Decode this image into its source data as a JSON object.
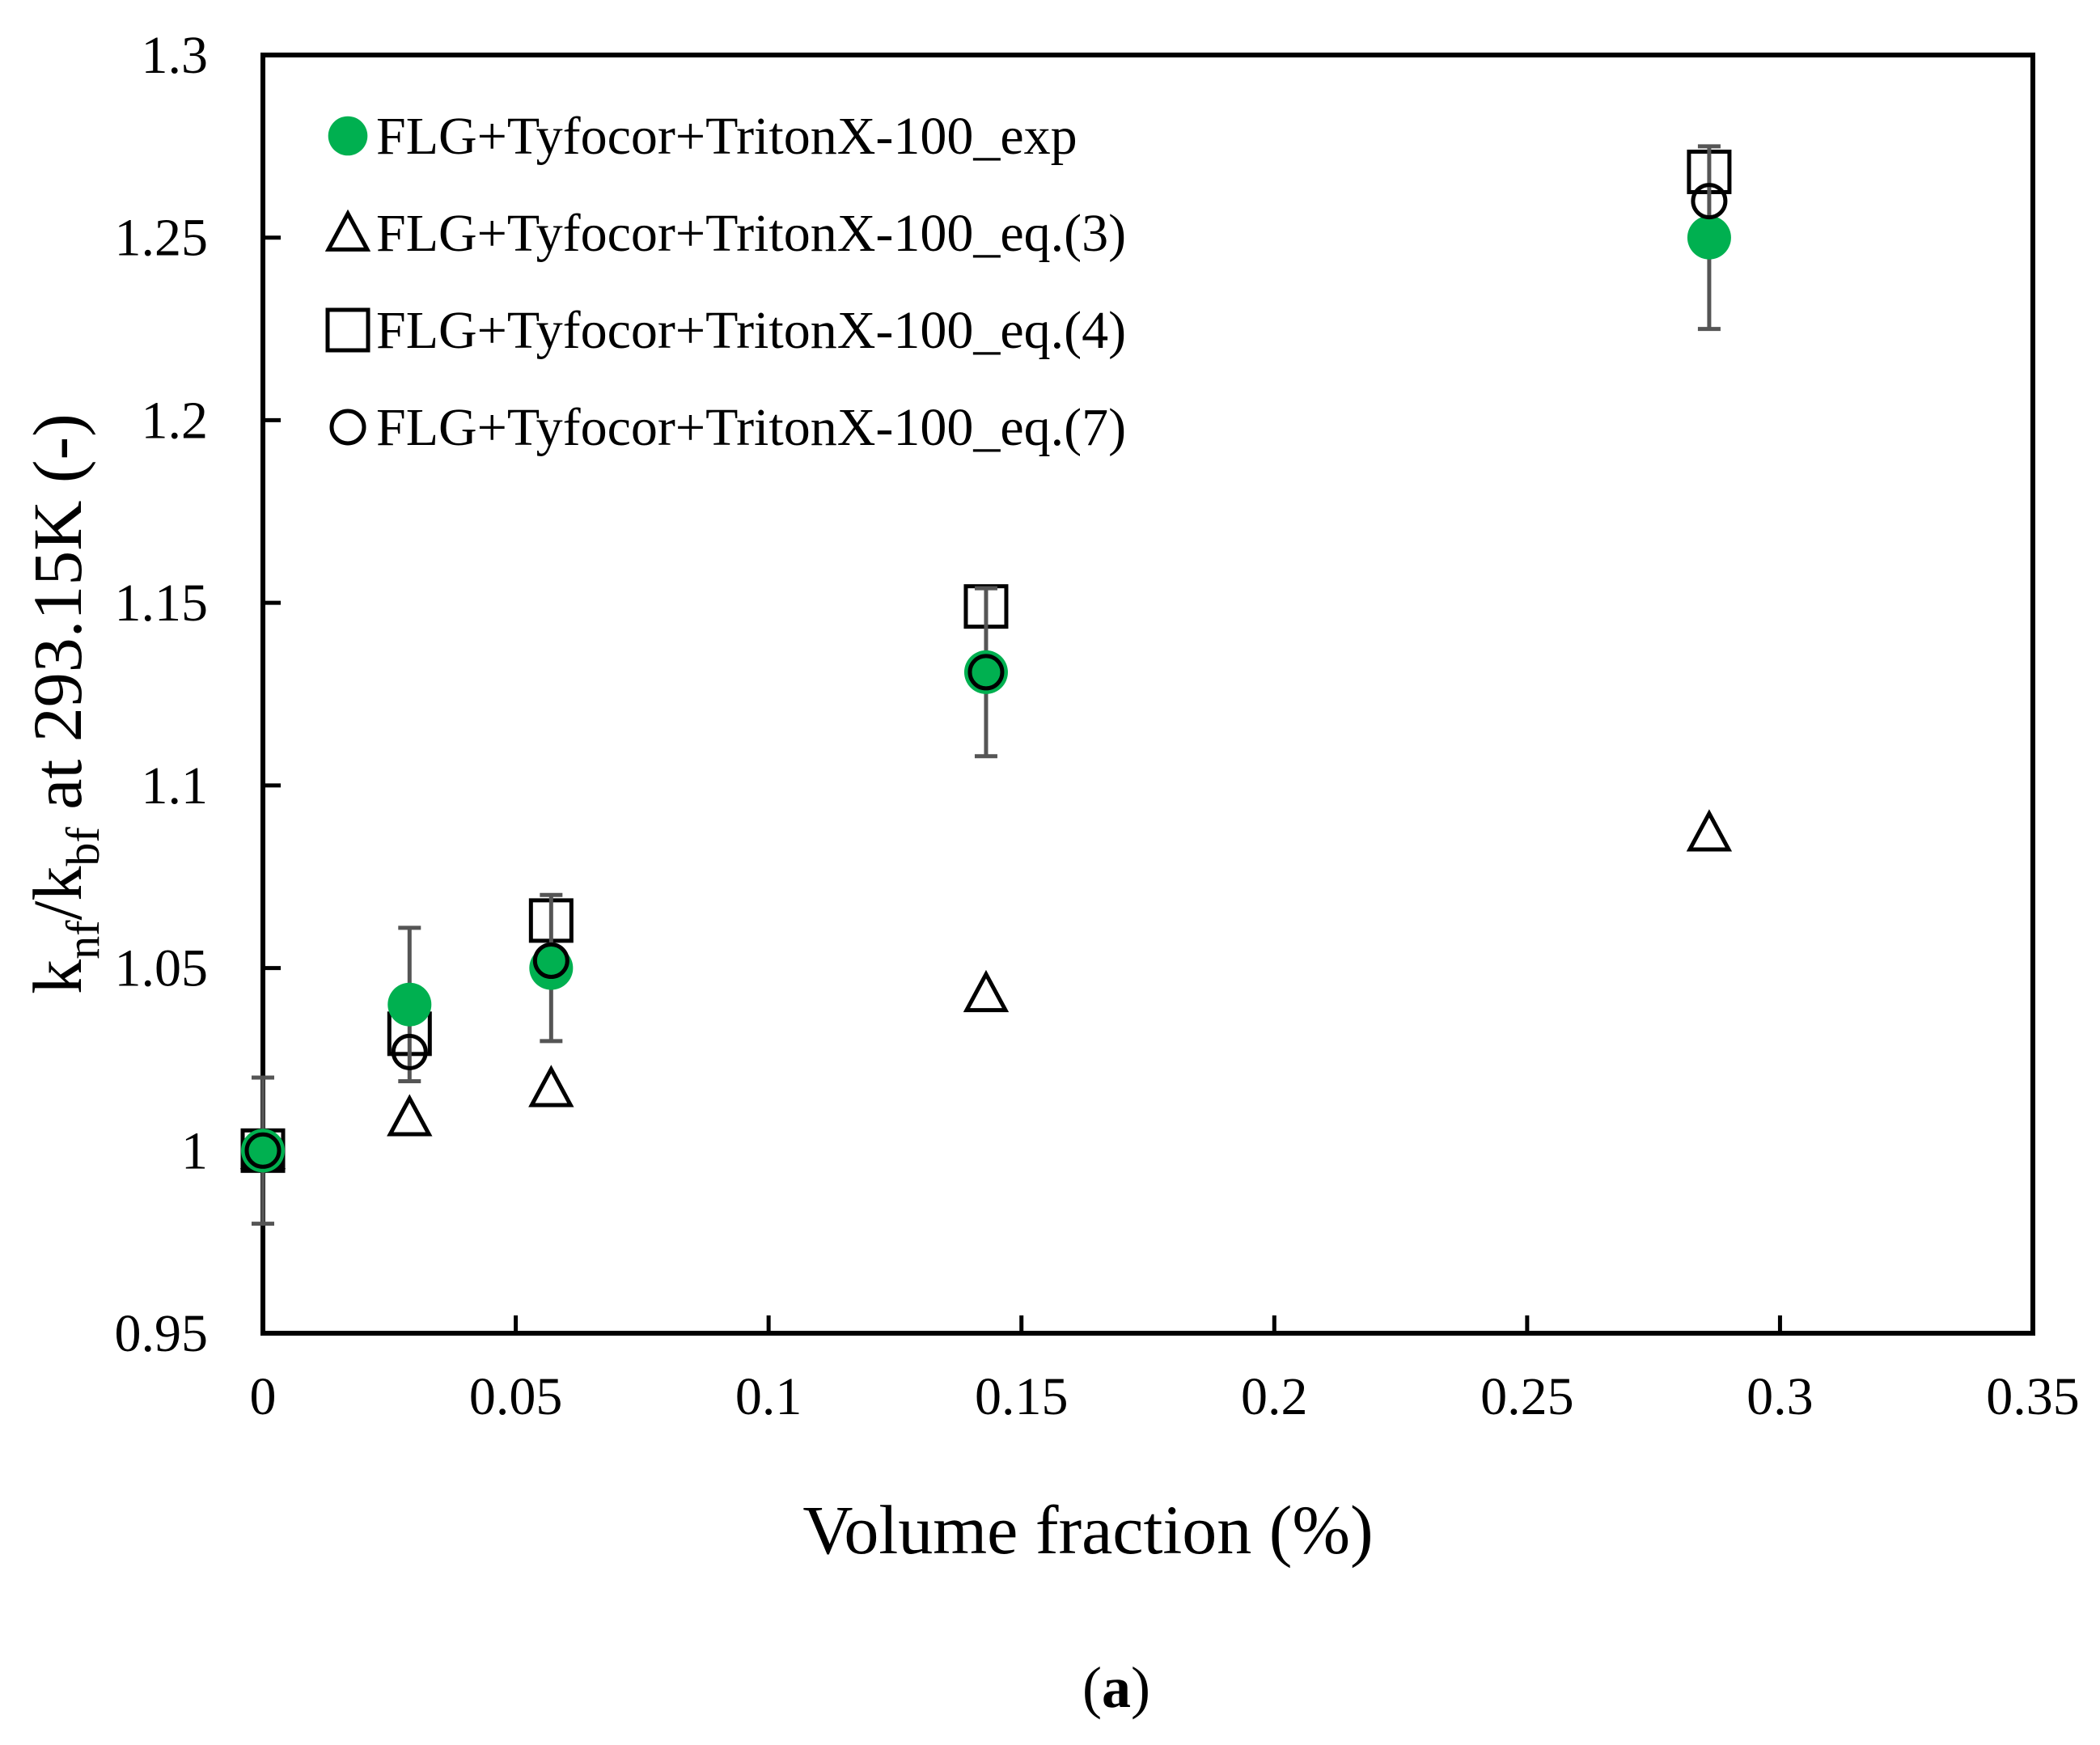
{
  "chart_data": {
    "type": "scatter",
    "xlabel": "Volume fraction (%)",
    "ylabel": {
      "k1": "k",
      "sub1": "nf",
      "slash": "/k",
      "sub2": "bf",
      "rest": " at 293.15K (-)"
    },
    "xlim": [
      0,
      0.35
    ],
    "ylim": [
      0.95,
      1.3
    ],
    "xticks": [
      "0",
      "0.05",
      "0.1",
      "0.15",
      "0.2",
      "0.25",
      "0.3",
      "0.35"
    ],
    "xtick_values": [
      0,
      0.05,
      0.1,
      0.15,
      0.2,
      0.25,
      0.3,
      0.35
    ],
    "yticks": [
      "0.95",
      "1",
      "1.05",
      "1.1",
      "1.15",
      "1.2",
      "1.25",
      "1.3"
    ],
    "ytick_values": [
      0.95,
      1.0,
      1.05,
      1.1,
      1.15,
      1.2,
      1.25,
      1.3
    ],
    "grid": false,
    "legend_position": "top-left",
    "caption": {
      "open": "(",
      "letter": "a",
      "close": ")"
    },
    "series": [
      {
        "name": "FLG+Tyfocor+TritonX-100_eq.(3)",
        "marker": "triangle",
        "color": "#000000",
        "filled": false,
        "x": [
          0,
          0.029,
          0.057,
          0.143,
          0.286
        ],
        "y": [
          1.0,
          1.009,
          1.017,
          1.043,
          1.087
        ]
      },
      {
        "name": "FLG+Tyfocor+TritonX-100_eq.(4)",
        "marker": "square",
        "color": "#000000",
        "filled": false,
        "x": [
          0,
          0.029,
          0.057,
          0.143,
          0.286
        ],
        "y": [
          1.0,
          1.032,
          1.063,
          1.149,
          1.268
        ]
      },
      {
        "name": "FLG+Tyfocor+TritonX-100_exp",
        "marker": "circle",
        "color": "#00b050",
        "filled": true,
        "x": [
          0,
          0.029,
          0.057,
          0.143,
          0.286
        ],
        "y": [
          1.0,
          1.04,
          1.05,
          1.131,
          1.25
        ],
        "error": [
          0.02,
          0.021,
          0.02,
          0.023,
          0.025
        ]
      },
      {
        "name": "FLG+Tyfocor+TritonX-100_eq.(7)",
        "marker": "circle",
        "color": "#000000",
        "filled": false,
        "x": [
          0,
          0.029,
          0.057,
          0.143,
          0.286
        ],
        "y": [
          1.0,
          1.027,
          1.052,
          1.131,
          1.26
        ]
      }
    ],
    "legend_order": [
      2,
      0,
      1,
      3
    ]
  }
}
